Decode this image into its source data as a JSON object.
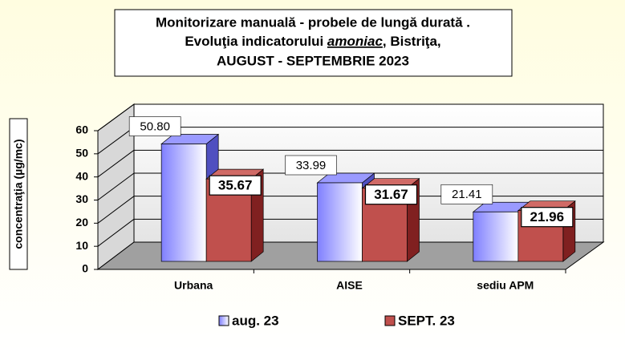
{
  "chart_data": {
    "type": "bar3d",
    "title": [
      "Monitorizare manuală - probele de lungă durată .",
      [
        "Evoluţia indicatorului ",
        "amoniac",
        ", Bistriţa,"
      ],
      "AUGUST - SEPTEMBRIE  2023"
    ],
    "y_label": "concentraţia (µg/mc)",
    "categories": [
      "Urbana",
      "AISE",
      "sediu APM"
    ],
    "series": [
      {
        "name": "aug. 23",
        "color": "#7f7fff",
        "values": [
          50.8,
          33.99,
          21.41
        ],
        "value_labels": [
          "50.80",
          "33.99",
          "21.41"
        ]
      },
      {
        "name": "SEPT. 23",
        "color": "#c0504d",
        "values": [
          35.67,
          31.67,
          21.96
        ]
      }
    ],
    "ylim": [
      0,
      60
    ],
    "yticks": [
      0,
      10,
      20,
      30,
      40,
      50,
      60
    ],
    "grid": true,
    "legend": "bottom"
  }
}
